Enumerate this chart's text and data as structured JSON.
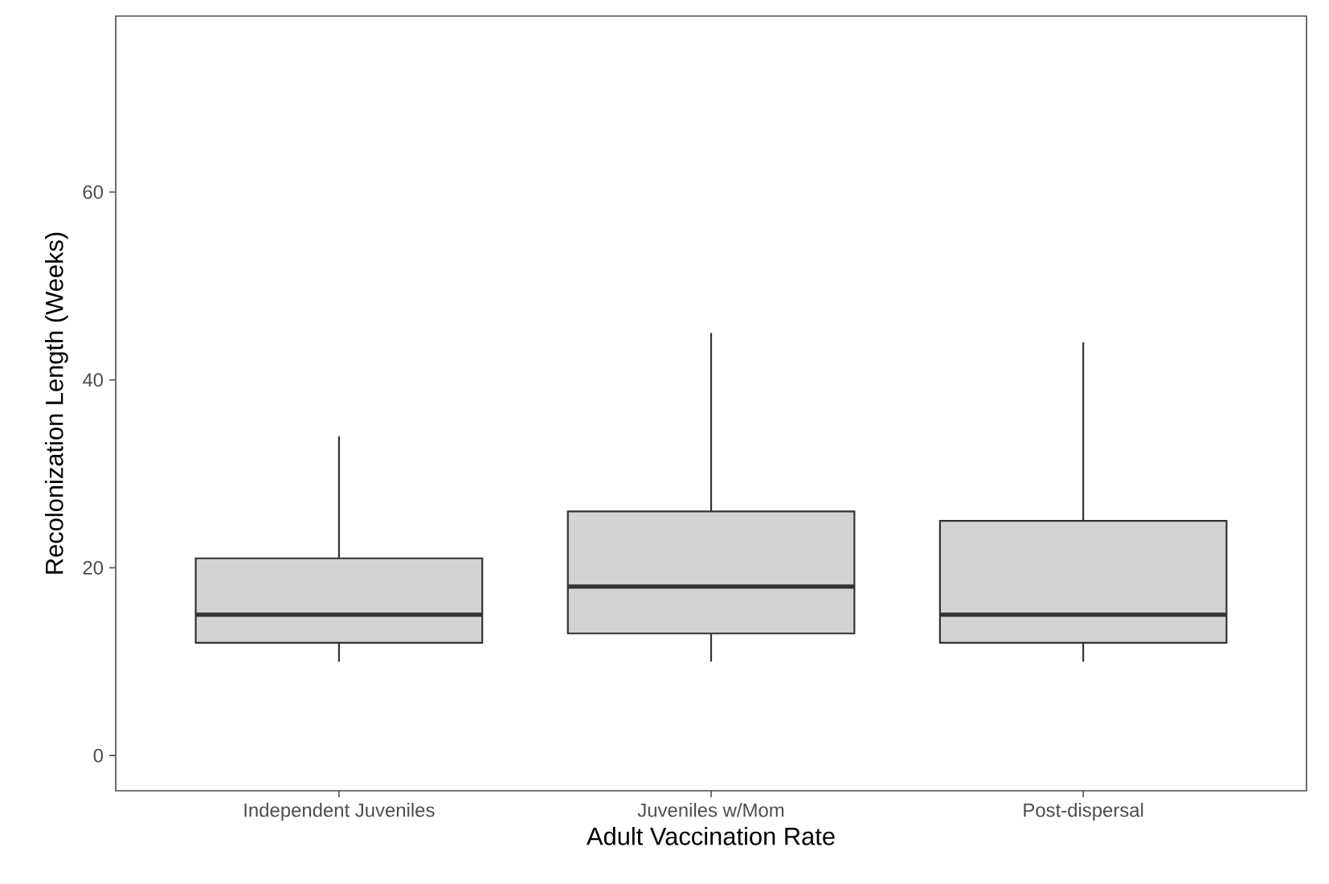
{
  "chart_data": {
    "type": "box",
    "xlabel": "Adult Vaccination Rate",
    "ylabel": "Recolonization Length (Weeks)",
    "categories": [
      "Independent Juveniles",
      "Juveniles w/Mom",
      "Post-dispersal"
    ],
    "color": "#d3d3d3",
    "boxes": [
      {
        "low": 10,
        "q1": 12,
        "median": 15,
        "q3": 21,
        "high": 34
      },
      {
        "low": 10,
        "q1": 13,
        "median": 18,
        "q3": 26,
        "high": 45
      },
      {
        "low": 10,
        "q1": 12,
        "median": 15,
        "q3": 25,
        "high": 44
      }
    ],
    "ylim": [
      -3.75,
      78.75
    ],
    "yticks": [
      0,
      20,
      40,
      60
    ],
    "grid": false
  }
}
